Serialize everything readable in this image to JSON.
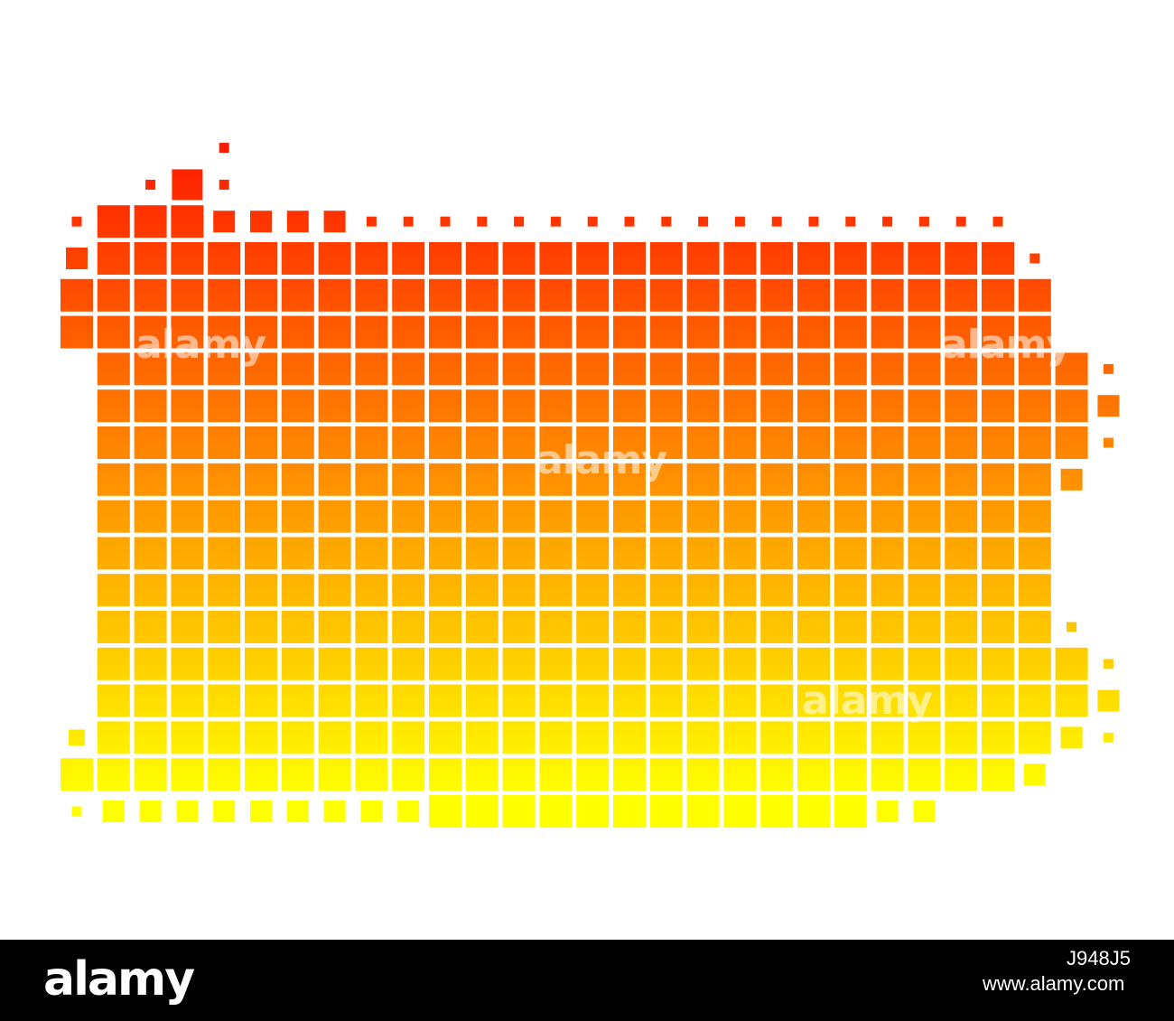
{
  "map": {
    "region": "",
    "gradient": {
      "top": "#ff1a00",
      "bottom": "#ffff00"
    },
    "watermark": "alamy"
  },
  "footer": {
    "logo": "alamy",
    "image_id": "J948J5",
    "url": "www.alamy.com"
  }
}
